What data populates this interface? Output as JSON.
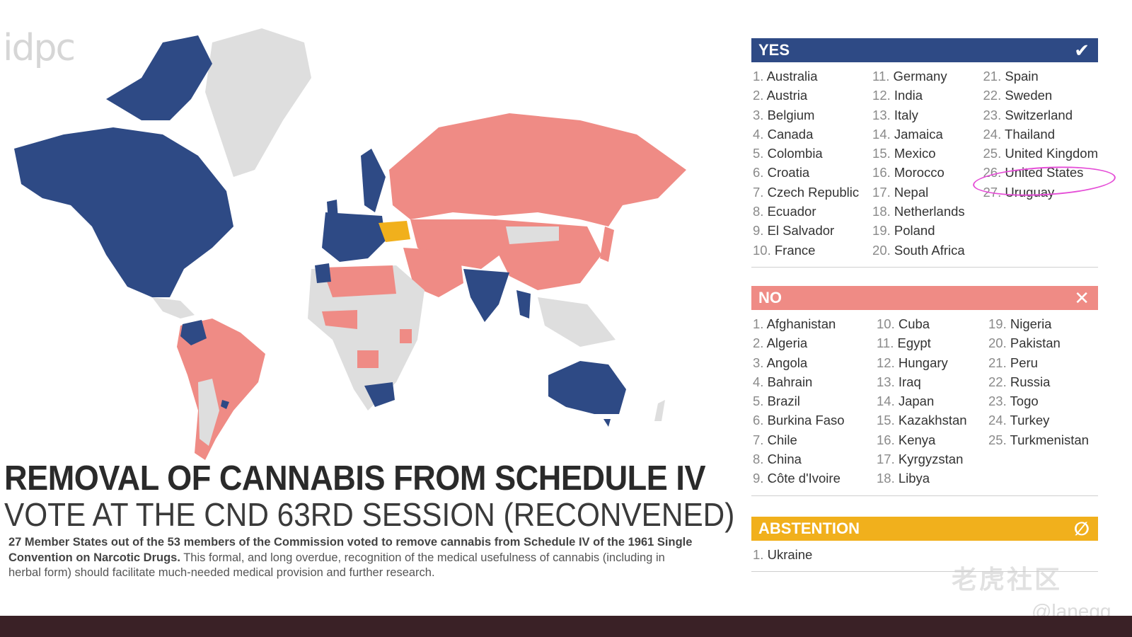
{
  "logo": "idpc",
  "title": "REMOVAL OF CANNABIS FROM SCHEDULE IV",
  "subtitle": "VOTE AT THE CND 63RD SESSION (RECONVENED)",
  "description_bold": "27 Member States out of the 53 members of the Commission voted to remove cannabis from Schedule IV of the 1961 Single Convention on Narcotic Drugs.",
  "description_rest": " This formal, and long overdue, recognition of the medical usefulness of cannabis (including in herbal form) should facilitate much-needed medical provision and further research.",
  "colors": {
    "yes": "#2e4a85",
    "no": "#ef8b85",
    "abstention": "#f1b01c",
    "absent": "#dedede"
  },
  "yes": {
    "label": "YES",
    "icon": "checkmark-icon",
    "items": [
      "Australia",
      "Austria",
      "Belgium",
      "Canada",
      "Colombia",
      "Croatia",
      "Czech Republic",
      "Ecuador",
      "El Salvador",
      "France",
      "Germany",
      "India",
      "Italy",
      "Jamaica",
      "Mexico",
      "Morocco",
      "Nepal",
      "Netherlands",
      "Poland",
      "South Africa",
      "Spain",
      "Sweden",
      "Switzerland",
      "Thailand",
      "United Kingdom",
      "United States",
      "Uruguay"
    ]
  },
  "no": {
    "label": "NO",
    "icon": "x-icon",
    "items": [
      "Afghanistan",
      "Algeria",
      "Angola",
      "Bahrain",
      "Brazil",
      "Burkina Faso",
      "Chile",
      "China",
      "Côte d'Ivoire",
      "Cuba",
      "Egypt",
      "Hungary",
      "Iraq",
      "Japan",
      "Kazakhstan",
      "Kenya",
      "Kyrgyzstan",
      "Libya",
      "Nigeria",
      "Pakistan",
      "Peru",
      "Russia",
      "Togo",
      "Turkey",
      "Turkmenistan"
    ]
  },
  "abstention": {
    "label": "ABSTENTION",
    "icon": "empty-set-icon",
    "items": [
      "Ukraine"
    ]
  },
  "highlighted_item": "United States",
  "watermark": "老虎社区",
  "handle": "@lanegg"
}
